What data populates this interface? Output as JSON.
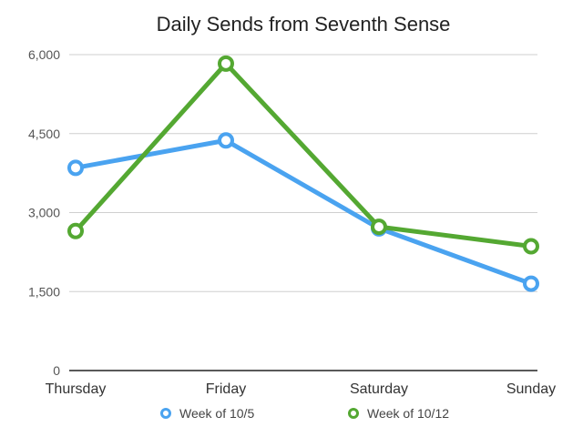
{
  "chart_data": {
    "type": "line",
    "title": "Daily Sends from Seventh Sense",
    "categories": [
      "Thursday",
      "Friday",
      "Saturday",
      "Sunday"
    ],
    "y_ticks": [
      "0",
      "1,500",
      "3,000",
      "4,500",
      "6,000"
    ],
    "ylim": [
      0,
      6000
    ],
    "grid": true,
    "legend_position": "bottom",
    "series": [
      {
        "name": "Week of 10/5",
        "color": "#4aa3f0",
        "values": [
          3850,
          4370,
          2700,
          1650
        ]
      },
      {
        "name": "Week of 10/12",
        "color": "#54a832",
        "values": [
          2650,
          5830,
          2730,
          2360
        ]
      }
    ]
  }
}
